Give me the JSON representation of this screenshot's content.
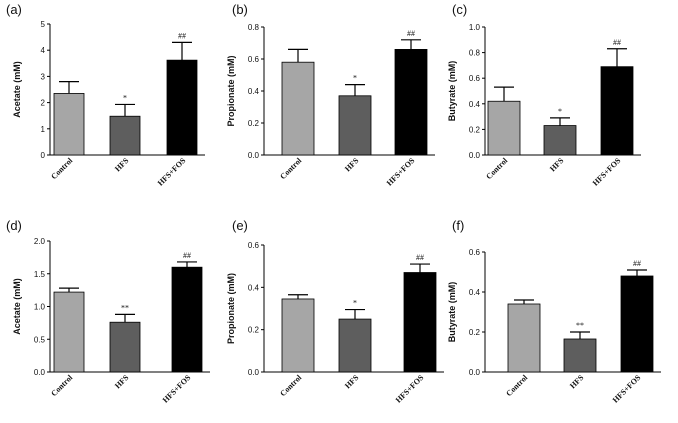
{
  "figure": {
    "bar_colors": [
      "#a6a6a6",
      "#5e5e5e",
      "#000000"
    ],
    "axis_color": "#000000"
  },
  "chart_data": [
    {
      "type": "bar",
      "panel_label": "(a)",
      "categories": [
        "Control",
        "HFS",
        "HFS+FOS"
      ],
      "values": [
        2.35,
        1.48,
        3.62
      ],
      "errors": [
        0.45,
        0.45,
        0.68
      ],
      "significance": [
        "",
        "*",
        "##"
      ],
      "ylabel": "Acetate (mM)",
      "ylim": [
        0,
        5
      ],
      "yticks": [
        0,
        1,
        2,
        3,
        4,
        5
      ],
      "ytick_labels": [
        "0",
        "1",
        "2",
        "3",
        "4",
        "5"
      ]
    },
    {
      "type": "bar",
      "panel_label": "(b)",
      "categories": [
        "Control",
        "HFS",
        "HFS+FOS"
      ],
      "values": [
        0.58,
        0.37,
        0.66
      ],
      "errors": [
        0.08,
        0.07,
        0.06
      ],
      "significance": [
        "",
        "*",
        "##"
      ],
      "ylabel": "Propionate (mM)",
      "ylim": [
        0,
        0.8
      ],
      "yticks": [
        0,
        0.2,
        0.4,
        0.6,
        0.8
      ],
      "ytick_labels": [
        "0.0",
        "0.2",
        "0.4",
        "0.6",
        "0.8"
      ]
    },
    {
      "type": "bar",
      "panel_label": "(c)",
      "categories": [
        "Control",
        "HFS",
        "HFS+FOS"
      ],
      "values": [
        0.42,
        0.23,
        0.69
      ],
      "errors": [
        0.11,
        0.06,
        0.14
      ],
      "significance": [
        "",
        "*",
        "##"
      ],
      "ylabel": "Butyrate (mM)",
      "ylim": [
        0,
        1.0
      ],
      "yticks": [
        0,
        0.2,
        0.4,
        0.6,
        0.8,
        1.0
      ],
      "ytick_labels": [
        "0.0",
        "0.2",
        "0.4",
        "0.6",
        "0.8",
        "1.0"
      ]
    },
    {
      "type": "bar",
      "panel_label": "(d)",
      "categories": [
        "Control",
        "HFS",
        "HFS+FOS"
      ],
      "values": [
        1.22,
        0.76,
        1.6
      ],
      "errors": [
        0.06,
        0.12,
        0.08
      ],
      "significance": [
        "",
        "**",
        "##"
      ],
      "ylabel": "Acetate (mM)",
      "ylim": [
        0,
        2.0
      ],
      "yticks": [
        0,
        0.5,
        1.0,
        1.5,
        2.0
      ],
      "ytick_labels": [
        "0.0",
        "0.5",
        "1.0",
        "1.5",
        "2.0"
      ]
    },
    {
      "type": "bar",
      "panel_label": "(e)",
      "categories": [
        "Control",
        "HFS",
        "HFS+FOS"
      ],
      "values": [
        0.345,
        0.25,
        0.47
      ],
      "errors": [
        0.02,
        0.045,
        0.04
      ],
      "significance": [
        "",
        "*",
        "##"
      ],
      "ylabel": "Propionate (mM)",
      "ylim": [
        0,
        0.6
      ],
      "yticks": [
        0,
        0.2,
        0.4,
        0.6
      ],
      "ytick_labels": [
        "0.0",
        "0.2",
        "0.4",
        "0.6"
      ]
    },
    {
      "type": "bar",
      "panel_label": "(f)",
      "categories": [
        "Control",
        "HFS",
        "HFS+FOS"
      ],
      "values": [
        0.34,
        0.165,
        0.48
      ],
      "errors": [
        0.02,
        0.035,
        0.03
      ],
      "significance": [
        "",
        "**",
        "##"
      ],
      "ylabel": "Butyrate (mM)",
      "ylim": [
        0,
        0.6
      ],
      "yticks": [
        0,
        0.2,
        0.4,
        0.6
      ],
      "ytick_labels": [
        "0.0",
        "0.2",
        "0.4",
        "0.6"
      ]
    }
  ]
}
